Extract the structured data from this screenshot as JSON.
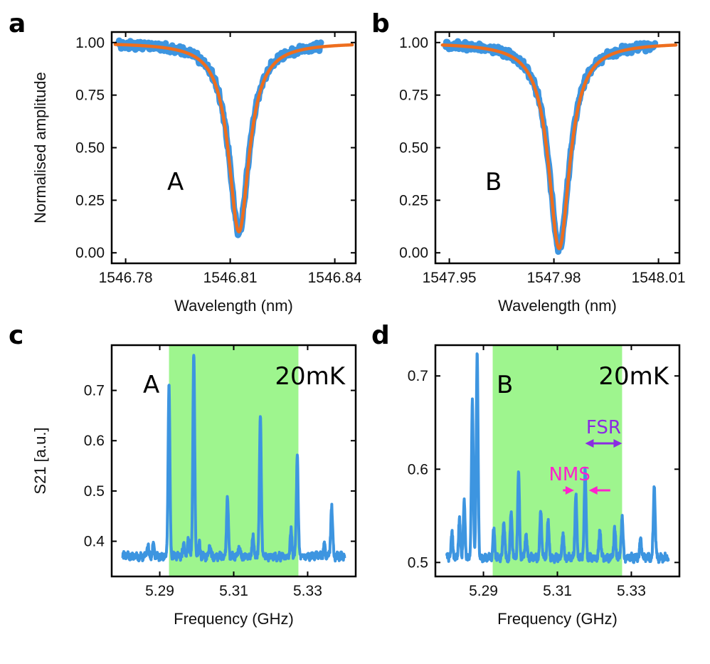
{
  "panels": [
    {
      "id": "a",
      "label": "a"
    },
    {
      "id": "b",
      "label": "b"
    },
    {
      "id": "c",
      "label": "c"
    },
    {
      "id": "d",
      "label": "d"
    }
  ],
  "colors": {
    "data": "#3d95e0",
    "fit": "#ee6e1e",
    "band": "#9ef58e",
    "fsr": "#8a2be2",
    "nms": "#ff22cc"
  },
  "chart_data": [
    {
      "panel": "a",
      "type": "line",
      "xlabel": "Wavelength (nm)",
      "ylabel": "Normalised amplitude",
      "xlim": [
        1546.776,
        1546.846
      ],
      "ylim": [
        -0.05,
        1.05
      ],
      "xticks": [
        1546.78,
        1546.81,
        1546.84
      ],
      "xtick_labels": [
        "1546.78",
        "1546.81",
        "1546.84"
      ],
      "yticks": [
        0,
        0.25,
        0.5,
        0.75,
        1.0
      ],
      "ytick_labels": [
        "0.00",
        "0.25",
        "0.50",
        "0.75",
        "1.00"
      ],
      "annotation": "A",
      "series": [
        {
          "role": "data",
          "lorentz": {
            "x0": 1546.8125,
            "depth": 0.9,
            "gamma": 0.0035,
            "xmin": 1546.778,
            "xmax": 1546.836
          }
        },
        {
          "role": "fit",
          "lorentz": {
            "x0": 1546.8125,
            "depth": 0.9,
            "gamma": 0.0036,
            "xmin": 1546.777,
            "xmax": 1546.845
          }
        }
      ]
    },
    {
      "panel": "b",
      "type": "line",
      "xlabel": "Wavelength (nm)",
      "ylabel": "",
      "xlim": [
        1547.946,
        1548.016
      ],
      "ylim": [
        -0.05,
        1.05
      ],
      "xticks": [
        1547.95,
        1547.98,
        1548.01
      ],
      "xtick_labels": [
        "1547.95",
        "1547.98",
        "1548.01"
      ],
      "yticks": [
        0,
        0.25,
        0.5,
        0.75,
        1.0
      ],
      "ytick_labels": [
        "0.00",
        "0.25",
        "0.50",
        "0.75",
        "1.00"
      ],
      "annotation": "B",
      "series": [
        {
          "role": "data",
          "lorentz": {
            "x0": 1547.9815,
            "depth": 0.98,
            "gamma": 0.0036,
            "xmin": 1547.949,
            "xmax": 1548.009
          }
        },
        {
          "role": "fit",
          "lorentz": {
            "x0": 1547.9815,
            "depth": 0.98,
            "gamma": 0.0037,
            "xmin": 1547.948,
            "xmax": 1548.015
          }
        }
      ]
    },
    {
      "panel": "c",
      "type": "line",
      "xlabel": "Frequency (GHz)",
      "ylabel": "S21 [a.u.]",
      "xlim": [
        5.277,
        5.343
      ],
      "ylim": [
        0.33,
        0.79
      ],
      "xticks": [
        5.29,
        5.31,
        5.33
      ],
      "xtick_labels": [
        "5.29",
        "5.31",
        "5.33"
      ],
      "yticks": [
        0.4,
        0.5,
        0.6,
        0.7
      ],
      "ytick_labels": [
        "0.4",
        "0.5",
        "0.6",
        "0.7"
      ],
      "band": [
        5.2925,
        5.3275
      ],
      "annotation": "A",
      "annotation_temp": "20mK",
      "series": [
        {
          "role": "data",
          "baseline": 0.37,
          "xmin": 5.28,
          "xmax": 5.34,
          "peaks": [
            [
              5.2868,
              0.39
            ],
            [
              5.2883,
              0.39
            ],
            [
              5.2925,
              0.71
            ],
            [
              5.2965,
              0.395
            ],
            [
              5.2978,
              0.41
            ],
            [
              5.2992,
              0.775
            ],
            [
              5.3007,
              0.395
            ],
            [
              5.3035,
              0.39
            ],
            [
              5.3083,
              0.49
            ],
            [
              5.3115,
              0.39
            ],
            [
              5.3152,
              0.41
            ],
            [
              5.3172,
              0.655
            ],
            [
              5.3255,
              0.42
            ],
            [
              5.3272,
              0.57
            ],
            [
              5.3345,
              0.39
            ],
            [
              5.3365,
              0.47
            ]
          ]
        }
      ]
    },
    {
      "panel": "d",
      "type": "line",
      "xlabel": "Frequency (GHz)",
      "ylabel": "",
      "xlim": [
        5.277,
        5.343
      ],
      "ylim": [
        0.485,
        0.733
      ],
      "xticks": [
        5.29,
        5.31,
        5.33
      ],
      "xtick_labels": [
        "5.29",
        "5.31",
        "5.33"
      ],
      "yticks": [
        0.5,
        0.6,
        0.7
      ],
      "ytick_labels": [
        "0.5",
        "0.6",
        "0.7"
      ],
      "band": [
        5.2925,
        5.3275
      ],
      "annotation": "B",
      "annotation_temp": "20mK",
      "fsr_label": "FSR",
      "nms_label": "NMS",
      "series": [
        {
          "role": "data",
          "baseline": 0.505,
          "xmin": 5.28,
          "xmax": 5.34,
          "peaks": [
            [
              5.2815,
              0.53
            ],
            [
              5.2835,
              0.545
            ],
            [
              5.2848,
              0.563
            ],
            [
              5.287,
              0.672
            ],
            [
              5.2883,
              0.722
            ],
            [
              5.2928,
              0.535
            ],
            [
              5.2955,
              0.545
            ],
            [
              5.2975,
              0.555
            ],
            [
              5.2995,
              0.595
            ],
            [
              5.3015,
              0.53
            ],
            [
              5.3055,
              0.555
            ],
            [
              5.3075,
              0.545
            ],
            [
              5.3115,
              0.53
            ],
            [
              5.315,
              0.573
            ],
            [
              5.3175,
              0.598
            ],
            [
              5.3215,
              0.535
            ],
            [
              5.3255,
              0.535
            ],
            [
              5.3275,
              0.55
            ],
            [
              5.3325,
              0.525
            ],
            [
              5.3362,
              0.582
            ]
          ]
        }
      ]
    }
  ]
}
